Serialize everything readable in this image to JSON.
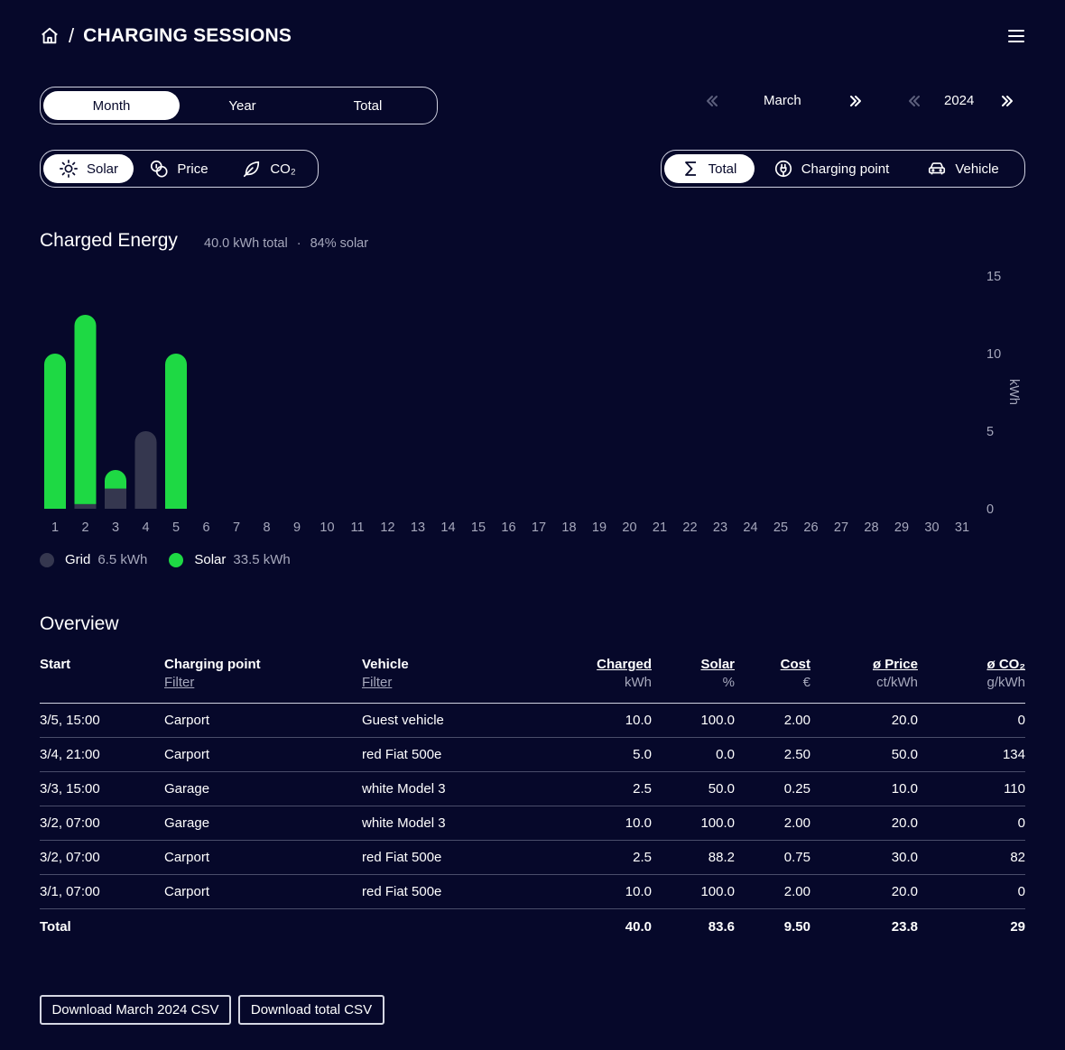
{
  "header": {
    "separator": "/",
    "title": "CHARGING SESSIONS"
  },
  "period_tabs": [
    {
      "label": "Month",
      "active": true
    },
    {
      "label": "Year",
      "active": false
    },
    {
      "label": "Total",
      "active": false
    }
  ],
  "period_nav": {
    "month": "March",
    "year": "2024"
  },
  "metric_tabs": [
    {
      "label": "Solar",
      "icon": "sun-icon",
      "active": true
    },
    {
      "label": "Price",
      "icon": "coins-icon",
      "active": false
    },
    {
      "label": "CO₂",
      "icon": "leaf-icon",
      "active": false
    }
  ],
  "group_tabs": [
    {
      "label": "Total",
      "icon": "sigma-icon",
      "active": true
    },
    {
      "label": "Charging point",
      "icon": "plug-icon",
      "active": false
    },
    {
      "label": "Vehicle",
      "icon": "car-icon",
      "active": false
    }
  ],
  "chart": {
    "title": "Charged Energy",
    "subtitle_total": "40.0 kWh total",
    "subtitle_dot": "·",
    "subtitle_solar": "84% solar"
  },
  "chart_data": {
    "type": "bar",
    "stacked": true,
    "categories": [
      "1",
      "2",
      "3",
      "4",
      "5",
      "6",
      "7",
      "8",
      "9",
      "10",
      "11",
      "12",
      "13",
      "14",
      "15",
      "16",
      "17",
      "18",
      "19",
      "20",
      "21",
      "22",
      "23",
      "24",
      "25",
      "26",
      "27",
      "28",
      "29",
      "30",
      "31"
    ],
    "series": [
      {
        "name": "Grid",
        "color": "#35374f",
        "values": [
          0,
          0.3,
          1.3,
          5.0,
          0,
          0,
          0,
          0,
          0,
          0,
          0,
          0,
          0,
          0,
          0,
          0,
          0,
          0,
          0,
          0,
          0,
          0,
          0,
          0,
          0,
          0,
          0,
          0,
          0,
          0,
          0
        ]
      },
      {
        "name": "Solar",
        "color": "#1ed944",
        "values": [
          10.0,
          12.2,
          1.2,
          0,
          10.0,
          0,
          0,
          0,
          0,
          0,
          0,
          0,
          0,
          0,
          0,
          0,
          0,
          0,
          0,
          0,
          0,
          0,
          0,
          0,
          0,
          0,
          0,
          0,
          0,
          0,
          0
        ]
      }
    ],
    "ylabel": "kWh",
    "ylim": [
      0,
      15
    ],
    "yticks": [
      0,
      5,
      10,
      15
    ],
    "y_axis_position": "right"
  },
  "legend": [
    {
      "label": "Grid",
      "value": "6.5 kWh",
      "color": "#35374f"
    },
    {
      "label": "Solar",
      "value": "33.5 kWh",
      "color": "#1ed944"
    }
  ],
  "overview": {
    "title": "Overview",
    "columns": [
      {
        "label": "Start",
        "sub": ""
      },
      {
        "label": "Charging point",
        "sub": "Filter"
      },
      {
        "label": "Vehicle",
        "sub": "Filter"
      },
      {
        "label": "Charged",
        "sub": "kWh"
      },
      {
        "label": "Solar",
        "sub": "%"
      },
      {
        "label": "Cost",
        "sub": "€"
      },
      {
        "label": "ø Price",
        "sub": "ct/kWh"
      },
      {
        "label": "ø CO₂",
        "sub": "g/kWh"
      }
    ],
    "rows": [
      [
        "3/5, 15:00",
        "Carport",
        "Guest vehicle",
        "10.0",
        "100.0",
        "2.00",
        "20.0",
        "0"
      ],
      [
        "3/4, 21:00",
        "Carport",
        "red Fiat 500e",
        "5.0",
        "0.0",
        "2.50",
        "50.0",
        "134"
      ],
      [
        "3/3, 15:00",
        "Garage",
        "white Model 3",
        "2.5",
        "50.0",
        "0.25",
        "10.0",
        "110"
      ],
      [
        "3/2, 07:00",
        "Garage",
        "white Model 3",
        "10.0",
        "100.0",
        "2.00",
        "20.0",
        "0"
      ],
      [
        "3/2, 07:00",
        "Carport",
        "red Fiat 500e",
        "2.5",
        "88.2",
        "0.75",
        "30.0",
        "82"
      ],
      [
        "3/1, 07:00",
        "Carport",
        "red Fiat 500e",
        "10.0",
        "100.0",
        "2.00",
        "20.0",
        "0"
      ]
    ],
    "total": [
      "Total",
      "",
      "",
      "40.0",
      "83.6",
      "9.50",
      "23.8",
      "29"
    ]
  },
  "downloads": {
    "month_csv": "Download March 2024 CSV",
    "total_csv": "Download total CSV"
  }
}
